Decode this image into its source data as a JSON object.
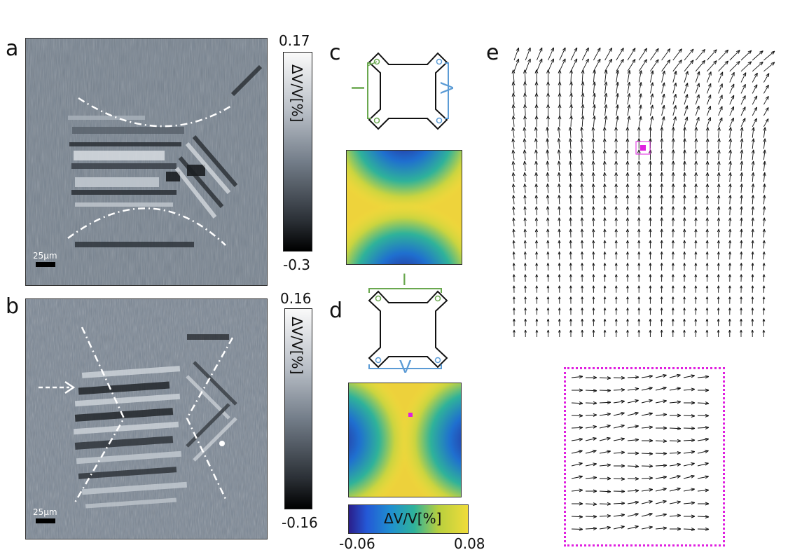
{
  "panels": {
    "a": {
      "label": "a",
      "scale": "25µm",
      "cb_max": "0.17",
      "cb_min": "-0.3",
      "cb_label": "ΔV/V[%]"
    },
    "b": {
      "label": "b",
      "scale": "25µm",
      "cb_max": "0.16",
      "cb_min": "-0.16",
      "cb_label": "ΔV/V[%]"
    },
    "c": {
      "label": "c",
      "I": "I",
      "V": "V"
    },
    "d": {
      "label": "d",
      "I": "I",
      "V": "V",
      "cb_label": "ΔV/V[%]",
      "cb_min": "-0.06",
      "cb_max": "0.08"
    },
    "e": {
      "label": "e"
    }
  },
  "colors": {
    "current": "#6aa84f",
    "voltage": "#5b9bd5",
    "marker": "#e020e0",
    "micro_bg": "#7a8694"
  }
}
